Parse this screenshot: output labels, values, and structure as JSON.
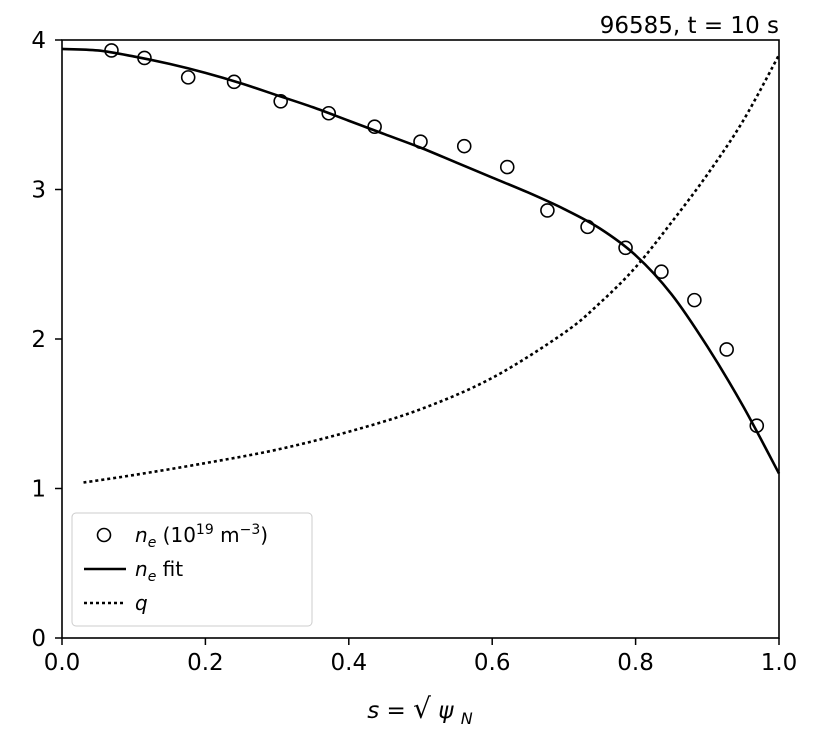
{
  "title": "96585, t = 10 s",
  "chart_data": {
    "type": "line",
    "title": "96585, t = 10 s",
    "xlabel": "s = √ψN",
    "ylabel": "",
    "xlim": [
      0.0,
      1.0
    ],
    "ylim": [
      0,
      4
    ],
    "xticks": [
      "0.0",
      "0.2",
      "0.4",
      "0.6",
      "0.8",
      "1.0"
    ],
    "yticks": [
      "0",
      "1",
      "2",
      "3",
      "4"
    ],
    "xtick_values": [
      0.0,
      0.2,
      0.4,
      0.6,
      0.8,
      1.0
    ],
    "ytick_values": [
      0,
      1,
      2,
      3,
      4
    ],
    "grid": false,
    "legend_position": "lower-left",
    "series": [
      {
        "name": "ne (1019 m−3)",
        "style": "markers-open-circle",
        "color": "#000000",
        "x": [
          0.069,
          0.115,
          0.176,
          0.24,
          0.305,
          0.372,
          0.436,
          0.5,
          0.561,
          0.621,
          0.677,
          0.733,
          0.786,
          0.836,
          0.882,
          0.927,
          0.969
        ],
        "y": [
          3.93,
          3.88,
          3.75,
          3.72,
          3.59,
          3.51,
          3.42,
          3.32,
          3.29,
          3.15,
          2.86,
          2.75,
          2.61,
          2.45,
          2.26,
          1.93,
          1.42
        ]
      },
      {
        "name": "ne fit",
        "style": "solid",
        "color": "#000000",
        "x": [
          0.0,
          0.05,
          0.1,
          0.15,
          0.2,
          0.25,
          0.3,
          0.35,
          0.4,
          0.45,
          0.5,
          0.55,
          0.6,
          0.65,
          0.7,
          0.75,
          0.8,
          0.85,
          0.9,
          0.95,
          1.0
        ],
        "y": [
          3.94,
          3.93,
          3.89,
          3.84,
          3.78,
          3.71,
          3.63,
          3.55,
          3.46,
          3.37,
          3.28,
          3.18,
          3.08,
          2.98,
          2.87,
          2.74,
          2.56,
          2.3,
          1.95,
          1.55,
          1.1
        ]
      },
      {
        "name": "q",
        "style": "dotted",
        "color": "#000000",
        "x": [
          0.03,
          0.1,
          0.2,
          0.3,
          0.4,
          0.5,
          0.6,
          0.7,
          0.75,
          0.8,
          0.85,
          0.9,
          0.95,
          1.0
        ],
        "y": [
          1.04,
          1.09,
          1.17,
          1.26,
          1.38,
          1.53,
          1.74,
          2.04,
          2.24,
          2.48,
          2.78,
          3.1,
          3.46,
          3.9
        ]
      }
    ]
  }
}
